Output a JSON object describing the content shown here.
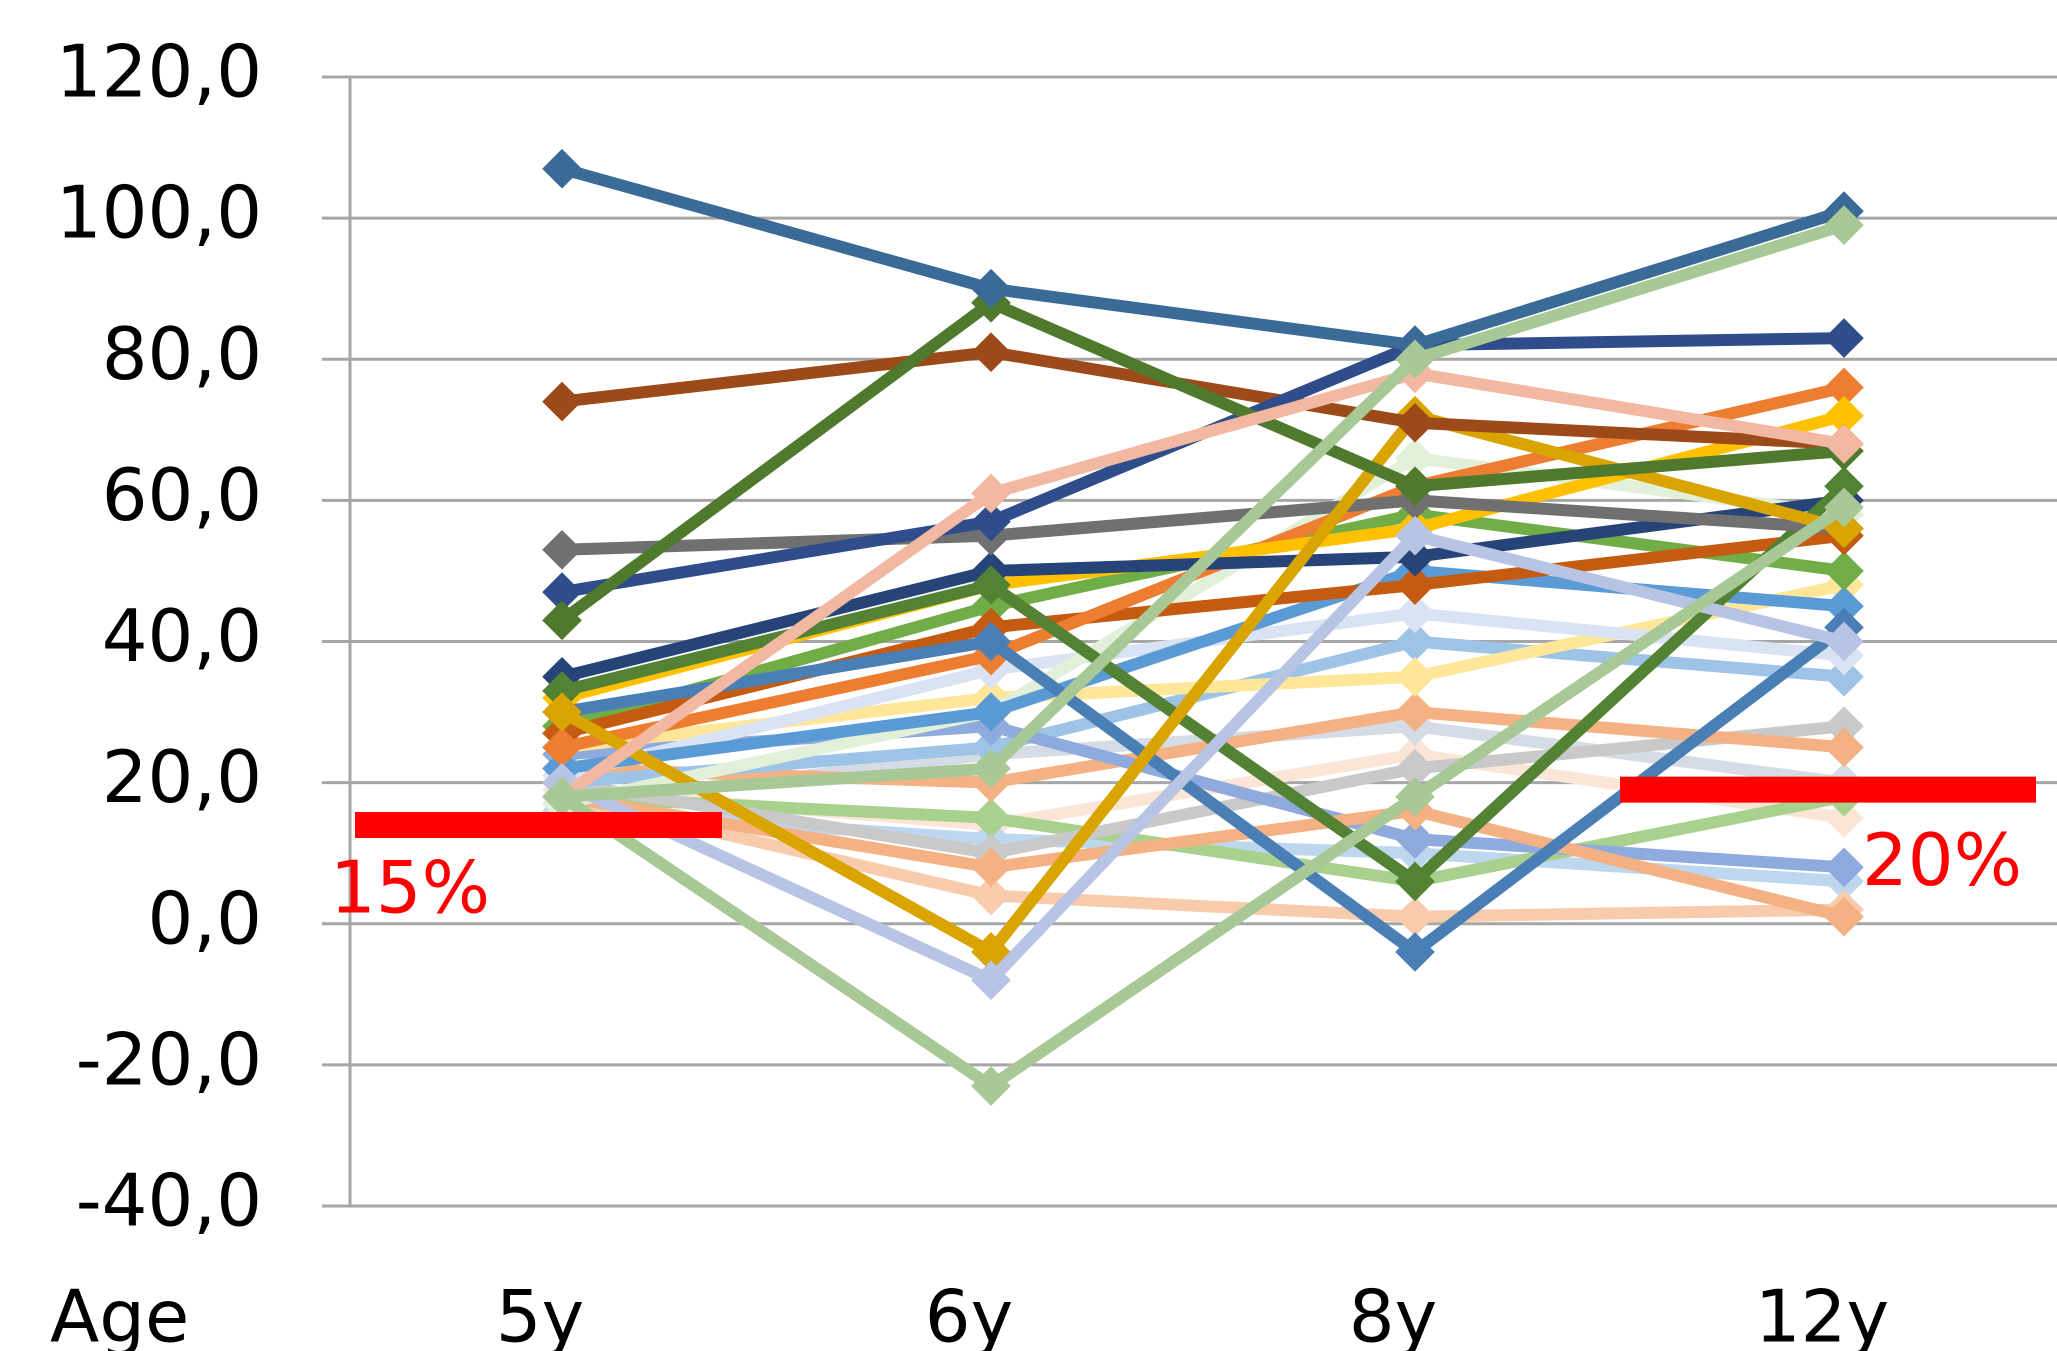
{
  "chart_data": {
    "type": "line",
    "x_label": "Age",
    "categories": [
      "5y",
      "6y",
      "8y",
      "12y"
    ],
    "ylim": [
      -40,
      120
    ],
    "yticks": [
      {
        "value": -40,
        "label": "-40,0"
      },
      {
        "value": -20,
        "label": "-20,0"
      },
      {
        "value": 0,
        "label": "0,0"
      },
      {
        "value": 20,
        "label": "20,0"
      },
      {
        "value": 40,
        "label": "40,0"
      },
      {
        "value": 60,
        "label": "60,0"
      },
      {
        "value": 80,
        "label": "80,0"
      },
      {
        "value": 100,
        "label": "100,0"
      },
      {
        "value": 120,
        "label": "120,0"
      }
    ],
    "grid": true,
    "annotations": [
      {
        "text": "15%",
        "y": 14,
        "color": "#ff0000"
      },
      {
        "text": "20%",
        "y": 19,
        "color": "#ff0000"
      }
    ],
    "series": [
      {
        "color": "#fbe5d6",
        "values": [
          19,
          14,
          24,
          15
        ]
      },
      {
        "color": "#d6dce5",
        "values": [
          17,
          24,
          28,
          20
        ]
      },
      {
        "color": "#bdd7ee",
        "values": [
          16,
          12,
          10,
          6
        ]
      },
      {
        "color": "#f8cbad",
        "values": [
          18,
          4,
          1,
          2
        ]
      },
      {
        "color": "#a9d18e",
        "values": [
          18,
          15,
          6,
          18
        ]
      },
      {
        "color": "#c9c9c9",
        "values": [
          20,
          10,
          22,
          28
        ]
      },
      {
        "color": "#f4b183",
        "values": [
          22,
          20,
          30,
          25
        ]
      },
      {
        "color": "#9dc3e6",
        "values": [
          20,
          25,
          40,
          35
        ]
      },
      {
        "color": "#8faadc",
        "values": [
          24,
          28,
          12,
          8
        ]
      },
      {
        "color": "#ffe699",
        "values": [
          25,
          32,
          35,
          48
        ]
      },
      {
        "color": "#dae3f3",
        "values": [
          21,
          36,
          44,
          38
        ]
      },
      {
        "color": "#f4b183",
        "values": [
          18,
          8,
          16,
          1
        ]
      },
      {
        "color": "#e2f0d9",
        "values": [
          17,
          30,
          66,
          58
        ]
      },
      {
        "color": "#5b9bd5",
        "values": [
          22,
          30,
          50,
          45
        ]
      },
      {
        "color": "#70ad47",
        "values": [
          28,
          45,
          58,
          50
        ]
      },
      {
        "color": "#c55a11",
        "values": [
          27,
          42,
          48,
          55
        ]
      },
      {
        "color": "#ed7d31",
        "values": [
          25,
          38,
          62,
          76
        ]
      },
      {
        "color": "#ffc000",
        "values": [
          32,
          48,
          56,
          72
        ]
      },
      {
        "color": "#264478",
        "values": [
          35,
          50,
          52,
          60
        ]
      },
      {
        "color": "#548235",
        "values": [
          33,
          48,
          6,
          62
        ]
      },
      {
        "color": "#4a7fb5",
        "values": [
          30,
          40,
          -4,
          42
        ]
      },
      {
        "color": "#707070",
        "values": [
          53,
          55,
          60,
          56
        ]
      },
      {
        "color": "#d9a400",
        "values": [
          30,
          -4,
          72,
          56
        ]
      },
      {
        "color": "#b8c4e4",
        "values": [
          20,
          -8,
          55,
          40
        ]
      },
      {
        "color": "#a8c896",
        "values": [
          18,
          -23,
          18,
          59
        ]
      },
      {
        "color": "#9c4a1a",
        "values": [
          74,
          81,
          71,
          68
        ]
      },
      {
        "color": "#2e4d8a",
        "values": [
          47,
          57,
          82,
          83
        ]
      },
      {
        "color": "#4f7a2e",
        "values": [
          43,
          88,
          62,
          67
        ]
      },
      {
        "color": "#f2b8a2",
        "values": [
          18,
          61,
          78,
          68
        ]
      },
      {
        "color": "#3a6a96",
        "values": [
          107,
          90,
          82,
          101
        ]
      },
      {
        "color": "#a8c896",
        "values": [
          18,
          22,
          80,
          99
        ]
      }
    ]
  }
}
